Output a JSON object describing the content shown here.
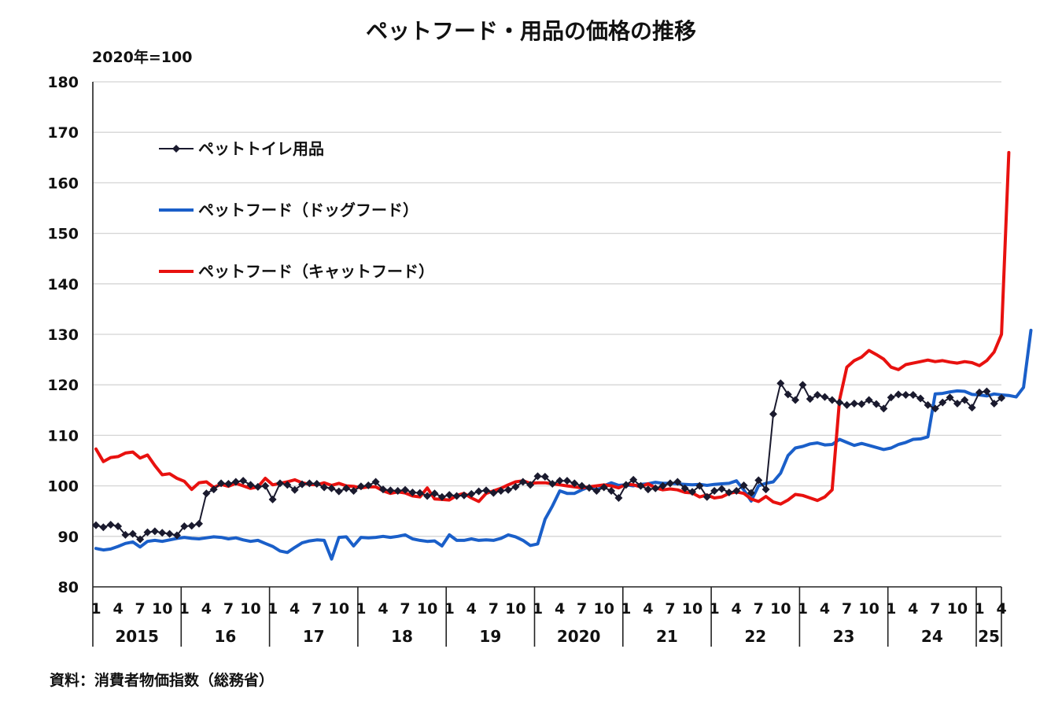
{
  "title": "ペットフード・用品の価格の推移",
  "unit_label": "2020年=100",
  "source": "資料：消費者物価指数（総務省）",
  "chart_data": {
    "type": "line",
    "title": "ペットフード・用品の価格の推移",
    "ylabel": "2020年=100",
    "ylim": [
      80,
      180
    ],
    "yticks": [
      80,
      90,
      100,
      110,
      120,
      130,
      140,
      150,
      160,
      170,
      180
    ],
    "grid": true,
    "legend_position": "top-left",
    "x_month_tick_labels": [
      "1",
      "4",
      "7",
      "10"
    ],
    "final_month_tick_labels": [
      "1",
      "4"
    ],
    "year_labels": [
      "2015",
      "16",
      "17",
      "18",
      "19",
      "2020",
      "21",
      "22",
      "23",
      "24",
      "25"
    ],
    "x_start": "2015-01",
    "x_end": "2025-04",
    "series": [
      {
        "name": "ペットトイレ用品",
        "color": "#1a1a2e",
        "marker": "diamond",
        "values": [
          92.2,
          91.8,
          92.3,
          92.0,
          90.3,
          90.5,
          89.4,
          90.8,
          91.0,
          90.7,
          90.5,
          90.2,
          92.0,
          92.1,
          92.5,
          98.5,
          99.3,
          100.5,
          100.4,
          100.8,
          101.0,
          100.2,
          99.8,
          100.0,
          97.3,
          100.5,
          100.2,
          99.2,
          100.3,
          100.5,
          100.4,
          99.7,
          99.5,
          98.9,
          99.5,
          99.0,
          99.9,
          100.1,
          100.8,
          99.3,
          99.1,
          99.0,
          99.2,
          98.7,
          98.6,
          98.0,
          98.5,
          97.8,
          98.2,
          98.0,
          98.1,
          98.4,
          98.9,
          99.1,
          98.6,
          99.0,
          99.2,
          99.8,
          100.8,
          100.2,
          101.9,
          101.8,
          100.4,
          101.0,
          101.0,
          100.5,
          100.0,
          99.6,
          99.0,
          99.7,
          99.0,
          97.6,
          100.2,
          101.2,
          100.0,
          99.3,
          99.5,
          100.0,
          100.5,
          100.8,
          99.5,
          98.8,
          100.0,
          97.8,
          99.0,
          99.4,
          98.7,
          99.0,
          100.1,
          98.6,
          101.1,
          99.3,
          114.2,
          120.3,
          118.1,
          117.0,
          120.0,
          117.2,
          118.0,
          117.6,
          117.0,
          116.5,
          116.0,
          116.3,
          116.2,
          117.0,
          116.2,
          115.3,
          117.5,
          118.1,
          118.0,
          118.0,
          117.3,
          116.0,
          115.3,
          116.5,
          117.5,
          116.3,
          117.0,
          115.5,
          118.5,
          118.7,
          116.3,
          117.4
        ]
      },
      {
        "name": "ペットフード（ドッグフード）",
        "color": "#1a5fc9",
        "marker": "none",
        "values": [
          87.6,
          87.3,
          87.5,
          88.0,
          88.6,
          88.9,
          87.9,
          89.0,
          89.2,
          89.0,
          89.3,
          89.6,
          89.8,
          89.6,
          89.5,
          89.7,
          89.9,
          89.8,
          89.5,
          89.7,
          89.3,
          89.0,
          89.2,
          88.6,
          88.0,
          87.1,
          86.8,
          87.8,
          88.7,
          89.1,
          89.3,
          89.2,
          85.5,
          89.8,
          89.9,
          88.1,
          89.8,
          89.7,
          89.8,
          90.0,
          89.8,
          90.0,
          90.3,
          89.5,
          89.2,
          89.0,
          89.1,
          88.1,
          90.3,
          89.2,
          89.2,
          89.5,
          89.2,
          89.3,
          89.2,
          89.6,
          90.3,
          89.9,
          89.2,
          88.2,
          88.5,
          93.4,
          96.0,
          99.0,
          98.5,
          98.5,
          99.2,
          99.8,
          99.1,
          100.0,
          100.6,
          100.1,
          100.2,
          100.0,
          100.3,
          100.4,
          100.7,
          100.5,
          100.5,
          100.4,
          100.3,
          100.2,
          100.3,
          100.1,
          100.3,
          100.4,
          100.5,
          101.0,
          99.2,
          97.0,
          100.0,
          100.5,
          100.8,
          102.5,
          106.0,
          107.5,
          107.8,
          108.3,
          108.5,
          108.1,
          108.2,
          109.2,
          108.6,
          108.0,
          108.4,
          108.0,
          107.6,
          107.2,
          107.5,
          108.2,
          108.6,
          109.2,
          109.3,
          109.7,
          118.2,
          118.3,
          118.6,
          118.8,
          118.7,
          118.1,
          118.0,
          117.8,
          118.2,
          118.0,
          117.9,
          117.6,
          119.5,
          130.8
        ]
      },
      {
        "name": "ペットフード（キャットフード）",
        "color": "#e8110f",
        "marker": "none",
        "values": [
          107.3,
          104.8,
          105.6,
          105.8,
          106.5,
          106.7,
          105.5,
          106.1,
          104.0,
          102.2,
          102.4,
          101.5,
          100.9,
          99.3,
          100.6,
          100.8,
          99.7,
          100.3,
          99.9,
          100.5,
          100.0,
          99.5,
          99.8,
          101.5,
          100.2,
          100.5,
          100.8,
          101.2,
          100.6,
          100.3,
          100.2,
          100.6,
          100.1,
          100.5,
          100.0,
          99.9,
          99.6,
          99.8,
          99.8,
          99.0,
          98.5,
          98.8,
          98.6,
          98.0,
          97.8,
          99.6,
          97.4,
          97.3,
          97.2,
          98.1,
          98.5,
          97.6,
          96.9,
          98.5,
          99.0,
          99.5,
          100.2,
          100.8,
          101.0,
          100.5,
          100.6,
          100.6,
          100.4,
          100.2,
          100.0,
          99.8,
          99.6,
          99.8,
          100.0,
          100.2,
          100.0,
          99.6,
          100.3,
          100.2,
          99.8,
          100.4,
          99.6,
          99.2,
          99.4,
          99.2,
          98.7,
          98.6,
          97.8,
          98.2,
          97.6,
          97.8,
          98.5,
          98.8,
          98.5,
          97.4,
          96.9,
          97.9,
          96.8,
          96.4,
          97.2,
          98.3,
          98.1,
          97.6,
          97.1,
          97.8,
          99.2,
          117.0,
          123.5,
          124.8,
          125.5,
          126.8,
          126.0,
          125.1,
          123.5,
          123.0,
          124.0,
          124.3,
          124.6,
          124.9,
          124.6,
          124.8,
          124.5,
          124.3,
          124.6,
          124.4,
          123.8,
          124.8,
          126.5,
          130.0,
          166.0
        ]
      }
    ]
  }
}
